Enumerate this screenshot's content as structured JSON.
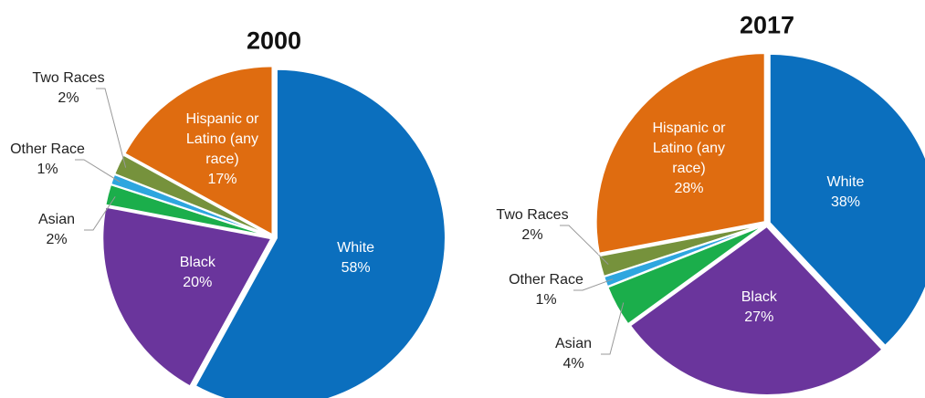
{
  "chart_data": [
    {
      "type": "pie",
      "title": "2000",
      "categories": [
        "White",
        "Black",
        "Asian",
        "Other Race",
        "Two Races",
        "Hispanic or Latino (any race)"
      ],
      "values": [
        58,
        20,
        2,
        1,
        2,
        17
      ],
      "value_labels": [
        "58%",
        "20%",
        "2%",
        "1%",
        "2%",
        "17%"
      ],
      "colors": [
        "#0b6fbe",
        "#6a359c",
        "#1bae4b",
        "#2ea6df",
        "#76923c",
        "#df6c10"
      ]
    },
    {
      "type": "pie",
      "title": "2017",
      "categories": [
        "White",
        "Black",
        "Asian",
        "Other Race",
        "Two Races",
        "Hispanic or Latino (any race)"
      ],
      "values": [
        38,
        27,
        4,
        1,
        2,
        28
      ],
      "value_labels": [
        "38%",
        "27%",
        "4%",
        "1%",
        "2%",
        "28%"
      ],
      "colors": [
        "#0b6fbe",
        "#6a359c",
        "#1bae4b",
        "#2ea6df",
        "#76923c",
        "#df6c10"
      ]
    }
  ]
}
